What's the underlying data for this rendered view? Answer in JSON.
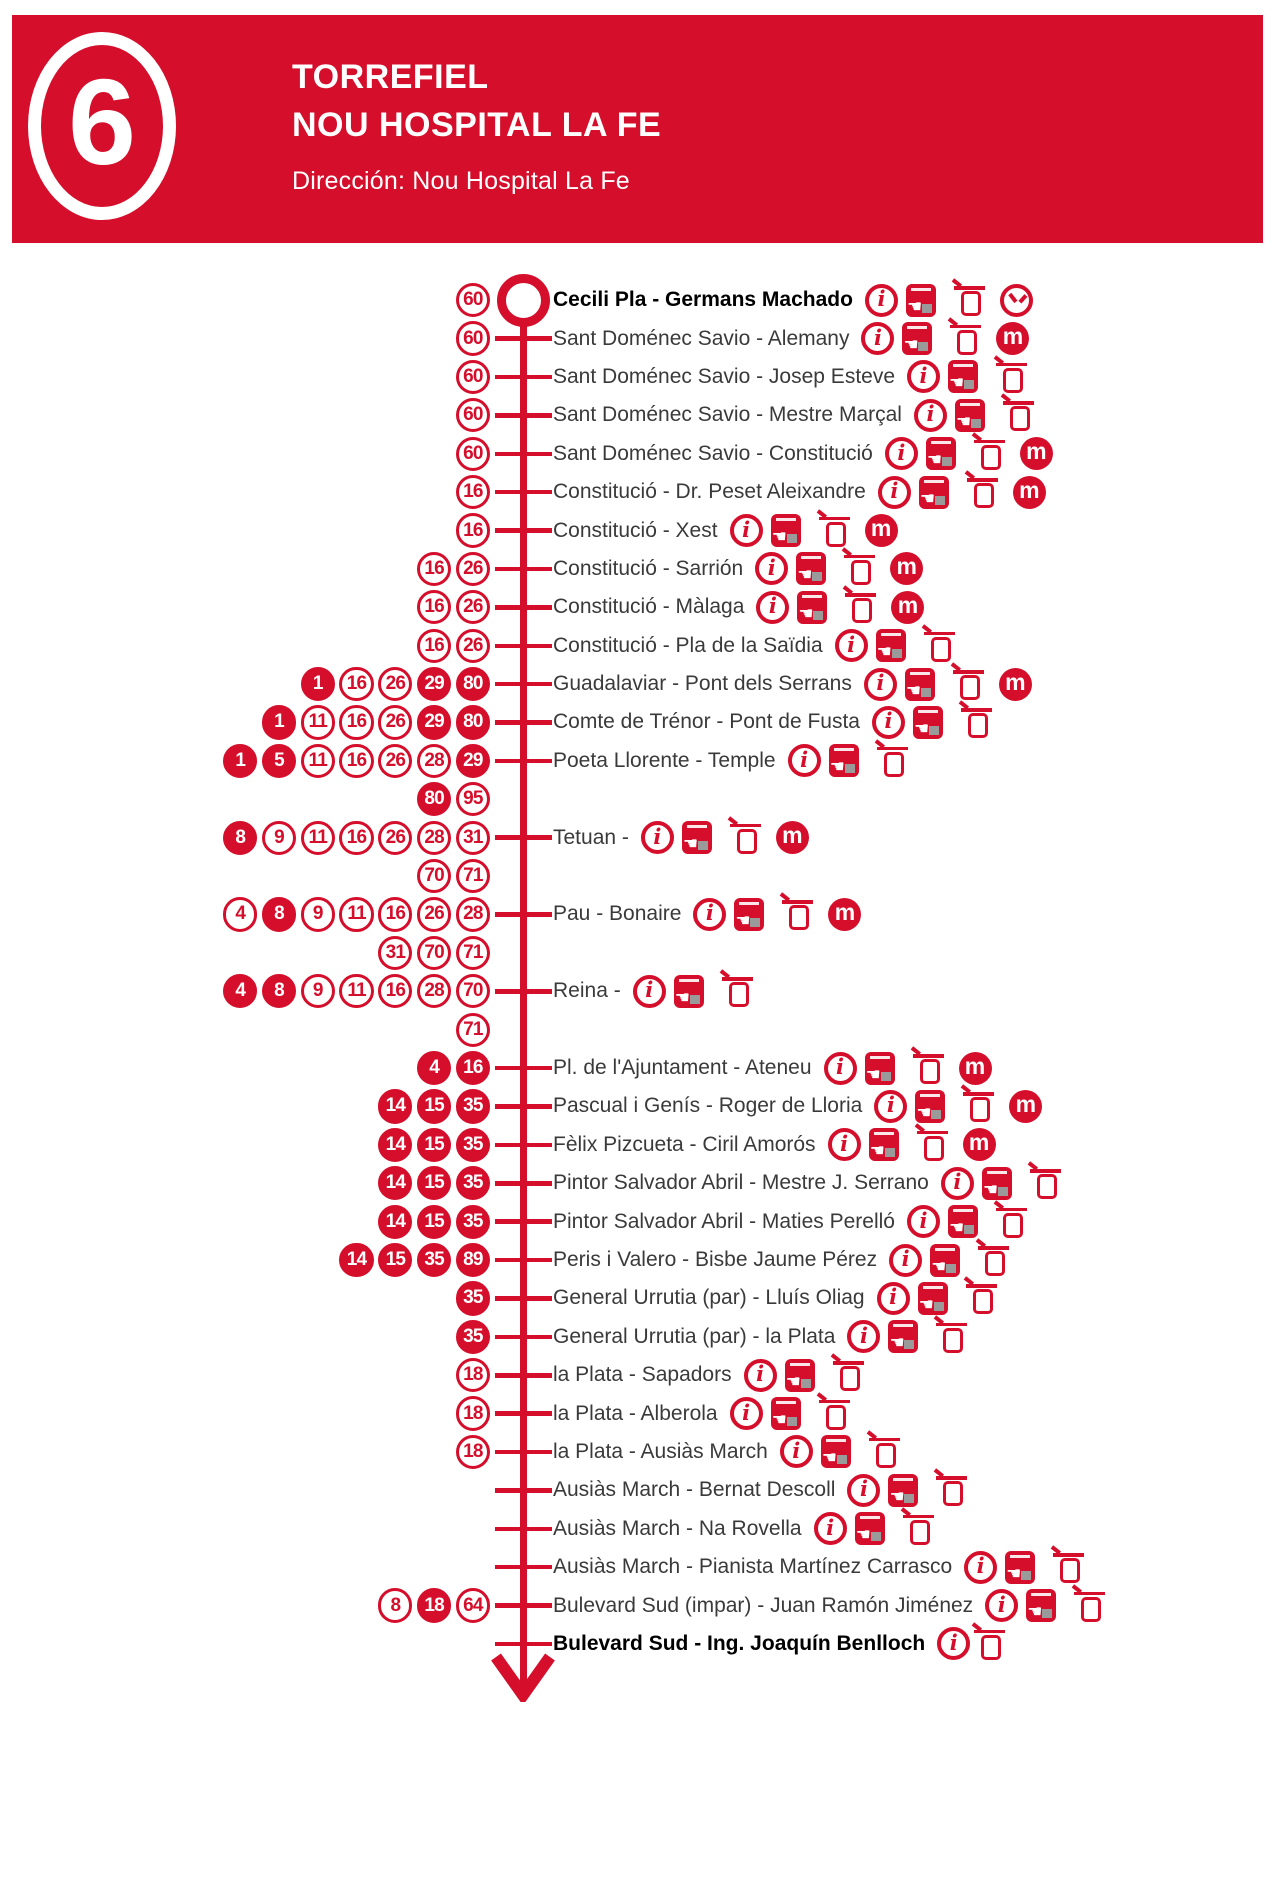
{
  "colors": {
    "accent": "#d50e2b",
    "text": "#3a3a3a",
    "text_bold": "#000000",
    "machine_screen": "#9a9a9a"
  },
  "glyphs": {
    "info": "i",
    "metro": "m",
    "machine_hand": "☚"
  },
  "header": {
    "line_number": "6",
    "title_line1": "TORREFIEL",
    "title_line2": "NOU HOSPITAL LA FE",
    "direction": "Dirección: Nou Hospital La Fe"
  },
  "stops": [
    {
      "name": "Cecili Pla - Germans Machado",
      "bold": true,
      "terminus": true,
      "badges": [
        [
          "60",
          "o"
        ]
      ],
      "icons": [
        "info",
        "machine",
        "shelter",
        "clock"
      ]
    },
    {
      "name": "Sant Doménec Savio - Alemany",
      "badges": [
        [
          "60",
          "o"
        ]
      ],
      "icons": [
        "info",
        "machine",
        "shelter",
        "metro"
      ]
    },
    {
      "name": "Sant Doménec Savio - Josep Esteve",
      "badges": [
        [
          "60",
          "o"
        ]
      ],
      "icons": [
        "info",
        "machine",
        "shelter"
      ]
    },
    {
      "name": "Sant Doménec Savio - Mestre Marçal",
      "badges": [
        [
          "60",
          "o"
        ]
      ],
      "icons": [
        "info",
        "machine",
        "shelter"
      ]
    },
    {
      "name": "Sant Doménec Savio - Constitució",
      "badges": [
        [
          "60",
          "o"
        ]
      ],
      "icons": [
        "info",
        "machine",
        "shelter",
        "metro"
      ]
    },
    {
      "name": "Constitució - Dr. Peset Aleixandre",
      "badges": [
        [
          "16",
          "o"
        ]
      ],
      "icons": [
        "info",
        "machine",
        "shelter",
        "metro"
      ]
    },
    {
      "name": "Constitució - Xest",
      "badges": [
        [
          "16",
          "o"
        ]
      ],
      "icons": [
        "info",
        "machine",
        "shelter",
        "metro"
      ]
    },
    {
      "name": "Constitució - Sarrión",
      "badges": [
        [
          "16",
          "o"
        ],
        [
          "26",
          "o"
        ]
      ],
      "icons": [
        "info",
        "machine",
        "shelter",
        "metro"
      ]
    },
    {
      "name": "Constitució - Màlaga",
      "badges": [
        [
          "16",
          "o"
        ],
        [
          "26",
          "o"
        ]
      ],
      "icons": [
        "info",
        "machine",
        "shelter",
        "metro"
      ]
    },
    {
      "name": "Constitució - Pla de la Saïdia",
      "badges": [
        [
          "16",
          "o"
        ],
        [
          "26",
          "o"
        ]
      ],
      "icons": [
        "info",
        "machine",
        "shelter"
      ]
    },
    {
      "name": "Guadalaviar - Pont dels Serrans",
      "badges": [
        [
          "1",
          "s"
        ],
        [
          "16",
          "o"
        ],
        [
          "26",
          "o"
        ],
        [
          "29",
          "s"
        ],
        [
          "80",
          "s"
        ]
      ],
      "icons": [
        "info",
        "machine",
        "shelter",
        "metro"
      ]
    },
    {
      "name": "Comte de Trénor - Pont de Fusta",
      "badges": [
        [
          "1",
          "s"
        ],
        [
          "11",
          "o"
        ],
        [
          "16",
          "o"
        ],
        [
          "26",
          "o"
        ],
        [
          "29",
          "s"
        ],
        [
          "80",
          "s"
        ]
      ],
      "icons": [
        "info",
        "machine",
        "shelter"
      ]
    },
    {
      "name": "Poeta Llorente - Temple",
      "badges": [
        [
          "1",
          "s"
        ],
        [
          "5",
          "s"
        ],
        [
          "11",
          "o"
        ],
        [
          "16",
          "o"
        ],
        [
          "26",
          "o"
        ],
        [
          "28",
          "o"
        ],
        [
          "29",
          "s"
        ]
      ],
      "badges2": [
        [
          "80",
          "s"
        ],
        [
          "95",
          "o"
        ]
      ],
      "icons": [
        "info",
        "machine",
        "shelter"
      ]
    },
    {
      "name": "Tetuan -",
      "badges": [
        [
          "8",
          "s"
        ],
        [
          "9",
          "o"
        ],
        [
          "11",
          "o"
        ],
        [
          "16",
          "o"
        ],
        [
          "26",
          "o"
        ],
        [
          "28",
          "o"
        ],
        [
          "31",
          "o"
        ]
      ],
      "badges2": [
        [
          "70",
          "o"
        ],
        [
          "71",
          "o"
        ]
      ],
      "icons": [
        "info",
        "machine",
        "shelter",
        "metro"
      ]
    },
    {
      "name": "Pau - Bonaire",
      "badges": [
        [
          "4",
          "o"
        ],
        [
          "8",
          "s"
        ],
        [
          "9",
          "o"
        ],
        [
          "11",
          "o"
        ],
        [
          "16",
          "o"
        ],
        [
          "26",
          "o"
        ],
        [
          "28",
          "o"
        ]
      ],
      "badges2": [
        [
          "31",
          "o"
        ],
        [
          "70",
          "o"
        ],
        [
          "71",
          "o"
        ]
      ],
      "icons": [
        "info",
        "machine",
        "shelter",
        "metro"
      ]
    },
    {
      "name": "Reina -",
      "badges": [
        [
          "4",
          "s"
        ],
        [
          "8",
          "s"
        ],
        [
          "9",
          "o"
        ],
        [
          "11",
          "o"
        ],
        [
          "16",
          "o"
        ],
        [
          "28",
          "o"
        ],
        [
          "70",
          "o"
        ]
      ],
      "badges2": [
        [
          "71",
          "o"
        ]
      ],
      "icons": [
        "info",
        "machine",
        "shelter"
      ]
    },
    {
      "name": "Pl. de l'Ajuntament - Ateneu",
      "badges": [
        [
          "4",
          "s"
        ],
        [
          "16",
          "s"
        ]
      ],
      "icons": [
        "info",
        "machine",
        "shelter",
        "metro"
      ]
    },
    {
      "name": "Pascual i Genís - Roger de Lloria",
      "badges": [
        [
          "14",
          "s"
        ],
        [
          "15",
          "s"
        ],
        [
          "35",
          "s"
        ]
      ],
      "icons": [
        "info",
        "machine",
        "shelter",
        "metro"
      ]
    },
    {
      "name": "Fèlix Pizcueta - Ciril Amorós",
      "badges": [
        [
          "14",
          "s"
        ],
        [
          "15",
          "s"
        ],
        [
          "35",
          "s"
        ]
      ],
      "icons": [
        "info",
        "machine",
        "shelter",
        "metro"
      ]
    },
    {
      "name": "Pintor Salvador Abril - Mestre J. Serrano",
      "badges": [
        [
          "14",
          "s"
        ],
        [
          "15",
          "s"
        ],
        [
          "35",
          "s"
        ]
      ],
      "icons": [
        "info",
        "machine",
        "shelter"
      ]
    },
    {
      "name": "Pintor Salvador Abril - Maties Perelló",
      "badges": [
        [
          "14",
          "s"
        ],
        [
          "15",
          "s"
        ],
        [
          "35",
          "s"
        ]
      ],
      "icons": [
        "info",
        "machine",
        "shelter"
      ]
    },
    {
      "name": "Peris i Valero - Bisbe Jaume Pérez",
      "badges": [
        [
          "14",
          "s"
        ],
        [
          "15",
          "s"
        ],
        [
          "35",
          "s"
        ],
        [
          "89",
          "s"
        ]
      ],
      "icons": [
        "info",
        "machine",
        "shelter"
      ]
    },
    {
      "name": "General Urrutia (par) - Lluís Oliag",
      "badges": [
        [
          "35",
          "s"
        ]
      ],
      "icons": [
        "info",
        "machine",
        "shelter"
      ]
    },
    {
      "name": "General Urrutia (par) - la Plata",
      "badges": [
        [
          "35",
          "s"
        ]
      ],
      "icons": [
        "info",
        "machine",
        "shelter"
      ]
    },
    {
      "name": "la Plata - Sapadors",
      "badges": [
        [
          "18",
          "o"
        ]
      ],
      "icons": [
        "info",
        "machine",
        "shelter"
      ]
    },
    {
      "name": "la Plata - Alberola",
      "badges": [
        [
          "18",
          "o"
        ]
      ],
      "icons": [
        "info",
        "machine",
        "shelter"
      ]
    },
    {
      "name": "la Plata - Ausiàs March",
      "badges": [
        [
          "18",
          "o"
        ]
      ],
      "icons": [
        "info",
        "machine",
        "shelter"
      ]
    },
    {
      "name": "Ausiàs March - Bernat Descoll",
      "badges": [],
      "icons": [
        "info",
        "machine",
        "shelter"
      ]
    },
    {
      "name": "Ausiàs March - Na Rovella",
      "badges": [],
      "icons": [
        "info",
        "machine",
        "shelter"
      ]
    },
    {
      "name": "Ausiàs March - Pianista Martínez Carrasco",
      "badges": [],
      "icons": [
        "info",
        "machine",
        "shelter"
      ]
    },
    {
      "name": "Bulevard Sud (impar) - Juan Ramón Jiménez",
      "badges": [
        [
          "8",
          "o"
        ],
        [
          "18",
          "s"
        ],
        [
          "64",
          "o"
        ]
      ],
      "icons": [
        "info",
        "machine",
        "shelter"
      ]
    },
    {
      "name": "Bulevard Sud - Ing. Joaquín Benlloch",
      "bold": true,
      "badges": [],
      "icons": [
        "info",
        "shelter"
      ]
    }
  ]
}
